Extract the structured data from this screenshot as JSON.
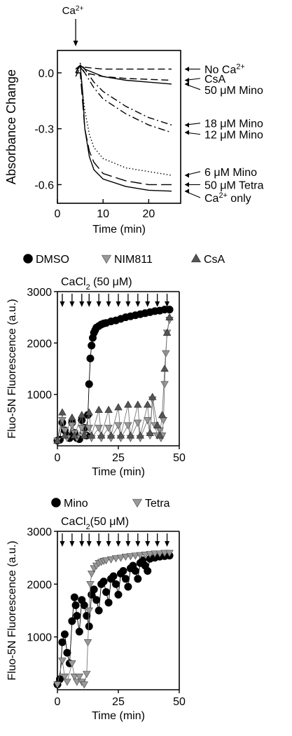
{
  "chart_data": [
    {
      "type": "line",
      "xlabel": "Time (min)",
      "ylabel": "Absorbance Change",
      "xlim": [
        0,
        27
      ],
      "ylim": [
        -0.7,
        0.12
      ],
      "xticks": [
        0,
        10,
        20
      ],
      "yticks": [
        0.0,
        -0.3,
        -0.6
      ],
      "ytick_labels": [
        "0.0",
        "-0.3",
        "-0.6"
      ],
      "grid": false,
      "annotation": {
        "label_main": "Ca",
        "label_sup": "2+",
        "x": 4
      },
      "series": [
        {
          "name": "No Ca2+",
          "label_main": "No Ca",
          "label_sup": "2+",
          "style": "dashed",
          "label_y": 0.02,
          "x": [
            4,
            5,
            6,
            8,
            10,
            15,
            20,
            25
          ],
          "y": [
            0.02,
            0.04,
            0.03,
            0.025,
            0.02,
            0.02,
            0.02,
            0.02
          ]
        },
        {
          "name": "CsA",
          "label_main": "CsA",
          "label_sup": "",
          "style": "dashed",
          "label_y": -0.03,
          "x": [
            4,
            5,
            6,
            8,
            10,
            15,
            20,
            25
          ],
          "y": [
            -0.02,
            0.03,
            0.0,
            -0.01,
            -0.02,
            -0.03,
            -0.035,
            -0.04
          ]
        },
        {
          "name": "50 μM Mino",
          "label_main": "50 μM Mino",
          "label_sup": "",
          "style": "solid",
          "label_y": -0.09,
          "x": [
            4,
            5,
            6,
            8,
            10,
            15,
            20,
            25
          ],
          "y": [
            0.0,
            0.04,
            0.02,
            0.0,
            -0.02,
            -0.04,
            -0.05,
            -0.06
          ]
        },
        {
          "name": "18 μM Mino",
          "label_main": "18 μM Mino",
          "label_sup": "",
          "style": "dashdot",
          "label_y": -0.27,
          "x": [
            4,
            5,
            6,
            8,
            10,
            15,
            20,
            25
          ],
          "y": [
            0.0,
            0.05,
            0.02,
            -0.05,
            -0.1,
            -0.18,
            -0.24,
            -0.28
          ]
        },
        {
          "name": "12 μM Mino",
          "label_main": "12 μM Mino",
          "label_sup": "",
          "style": "dashdot",
          "label_y": -0.33,
          "x": [
            4,
            5,
            6,
            8,
            10,
            15,
            20,
            25
          ],
          "y": [
            0.0,
            0.04,
            0.0,
            -0.08,
            -0.14,
            -0.22,
            -0.28,
            -0.32
          ]
        },
        {
          "name": "6 μM Mino",
          "label_main": "6 μM Mino",
          "label_sup": "",
          "style": "dotted",
          "label_y": -0.53,
          "x": [
            4,
            5,
            6,
            7,
            8,
            10,
            15,
            20,
            25
          ],
          "y": [
            0.0,
            0.0,
            -0.2,
            -0.33,
            -0.4,
            -0.46,
            -0.51,
            -0.53,
            -0.55
          ]
        },
        {
          "name": "50 μM Tetra",
          "label_main": "50 μM Tetra",
          "label_sup": "",
          "style": "longdash",
          "label_y": -0.6,
          "x": [
            4,
            5,
            6,
            7,
            8,
            10,
            15,
            20,
            25
          ],
          "y": [
            0.0,
            0.0,
            -0.3,
            -0.42,
            -0.48,
            -0.54,
            -0.58,
            -0.6,
            -0.6
          ]
        },
        {
          "name": "Ca2+ only",
          "label_main": "Ca",
          "label_sup": "2+",
          "label_tail": " only",
          "style": "solid",
          "label_y": -0.67,
          "x": [
            4,
            5,
            5.5,
            6,
            7,
            8,
            10,
            15,
            20,
            25
          ],
          "y": [
            0.02,
            0.04,
            -0.1,
            -0.3,
            -0.45,
            -0.52,
            -0.57,
            -0.61,
            -0.63,
            -0.635
          ]
        }
      ]
    },
    {
      "type": "scatter",
      "xlabel": "Time (min)",
      "ylabel": "Fluo-5N Fluorescence (a.u.)",
      "xlim": [
        0,
        50
      ],
      "ylim": [
        0,
        3000
      ],
      "xticks": [
        0,
        25,
        50
      ],
      "yticks": [
        1000,
        2000,
        3000
      ],
      "grid": false,
      "legend_position": "top",
      "annotation": {
        "label_main": "CaCl",
        "label_sub": "2",
        "label_tail": " (50 μM)",
        "arrows_x": [
          2,
          6,
          10,
          13,
          17,
          21,
          25,
          29,
          33,
          37,
          41,
          45
        ]
      },
      "series": [
        {
          "name": "DMSO",
          "marker": "circle",
          "color": "#000000",
          "x": [
            0,
            1,
            2,
            3,
            4,
            5,
            6,
            7,
            8,
            9,
            10,
            11,
            12,
            12.5,
            13,
            13.5,
            14,
            14.5,
            15,
            15.5,
            16,
            17,
            18,
            19,
            20,
            22,
            24,
            26,
            28,
            30,
            32,
            34,
            36,
            38,
            40,
            42,
            44,
            46
          ],
          "y": [
            100,
            120,
            450,
            300,
            200,
            150,
            450,
            250,
            150,
            130,
            500,
            350,
            200,
            600,
            1200,
            1700,
            1950,
            2100,
            2200,
            2250,
            2300,
            2330,
            2360,
            2380,
            2390,
            2420,
            2440,
            2470,
            2500,
            2520,
            2540,
            2560,
            2580,
            2600,
            2620,
            2630,
            2650,
            2650
          ]
        },
        {
          "name": "NIM811",
          "marker": "triangle-down",
          "color": "#999999",
          "x": [
            0,
            2,
            3,
            4,
            6,
            7,
            8,
            10,
            11,
            13,
            14,
            17,
            18,
            21,
            22,
            25,
            26,
            29,
            30,
            33,
            34,
            37,
            38,
            39,
            40,
            41,
            42,
            42.5,
            43,
            43.5,
            44,
            44.5,
            45,
            46
          ],
          "y": [
            100,
            500,
            300,
            150,
            400,
            250,
            150,
            350,
            200,
            350,
            150,
            350,
            150,
            350,
            150,
            400,
            150,
            400,
            150,
            450,
            150,
            500,
            200,
            900,
            400,
            200,
            300,
            150,
            200,
            500,
            1200,
            1800,
            2200,
            2450
          ]
        },
        {
          "name": "CsA",
          "marker": "triangle-up",
          "color": "#555555",
          "x": [
            0,
            2,
            3,
            6,
            7,
            10,
            11,
            13,
            14,
            17,
            18,
            21,
            22,
            25,
            26,
            29,
            30,
            33,
            34,
            37,
            38,
            39,
            41,
            42,
            43,
            44,
            45,
            46
          ],
          "y": [
            100,
            650,
            200,
            550,
            200,
            600,
            200,
            650,
            200,
            700,
            200,
            700,
            200,
            750,
            200,
            800,
            200,
            800,
            200,
            800,
            250,
            950,
            400,
            200,
            600,
            1500,
            2200,
            2500
          ]
        }
      ]
    },
    {
      "type": "scatter",
      "xlabel": "Time (min)",
      "ylabel": "Fluo-5N Fluorescence (a.u.)",
      "xlim": [
        0,
        50
      ],
      "ylim": [
        0,
        3000
      ],
      "xticks": [
        0,
        25,
        50
      ],
      "yticks": [
        1000,
        2000,
        3000
      ],
      "grid": false,
      "legend_position": "top",
      "annotation": {
        "label_main": "CaCl",
        "label_sub": "2",
        "label_tail": "(50 μM)",
        "arrows_x": [
          2,
          6,
          10,
          13,
          17,
          21,
          25,
          29,
          33,
          37,
          41,
          45
        ]
      },
      "series": [
        {
          "name": "Mino",
          "marker": "circle",
          "color": "#000000",
          "x": [
            0,
            1,
            2,
            3,
            4,
            5,
            6,
            7,
            7.5,
            8,
            9,
            10,
            11,
            12,
            13,
            14,
            15,
            16,
            17,
            18,
            19,
            20,
            21,
            22,
            23,
            24,
            25,
            26,
            27,
            28,
            29,
            30,
            31,
            32,
            33,
            34,
            35,
            36,
            37,
            38,
            40,
            42,
            44,
            46
          ],
          "y": [
            100,
            200,
            900,
            1050,
            700,
            500,
            1300,
            1750,
            1600,
            1400,
            1100,
            1700,
            1600,
            1400,
            1200,
            1800,
            1900,
            1700,
            1500,
            2000,
            2050,
            1850,
            1650,
            2100,
            2150,
            2000,
            1800,
            2200,
            2250,
            2100,
            1950,
            2300,
            2350,
            2250,
            2100,
            2400,
            2450,
            2350,
            2250,
            2480,
            2500,
            2520,
            2530,
            2540
          ]
        },
        {
          "name": "Tetra",
          "marker": "triangle-down",
          "color": "#999999",
          "x": [
            0,
            2,
            3,
            4,
            6,
            7,
            8,
            9,
            10,
            11,
            12,
            12.5,
            13,
            13.5,
            14,
            15,
            16,
            17,
            18,
            19,
            20,
            22,
            24,
            26,
            28,
            30,
            32,
            34,
            36,
            38,
            40,
            42,
            44,
            46
          ],
          "y": [
            100,
            550,
            250,
            150,
            500,
            250,
            150,
            250,
            150,
            100,
            300,
            900,
            1500,
            2000,
            2200,
            2300,
            2350,
            2400,
            2420,
            2440,
            2450,
            2470,
            2490,
            2500,
            2520,
            2530,
            2540,
            2550,
            2560,
            2570,
            2580,
            2580,
            2590,
            2590
          ]
        }
      ]
    }
  ]
}
